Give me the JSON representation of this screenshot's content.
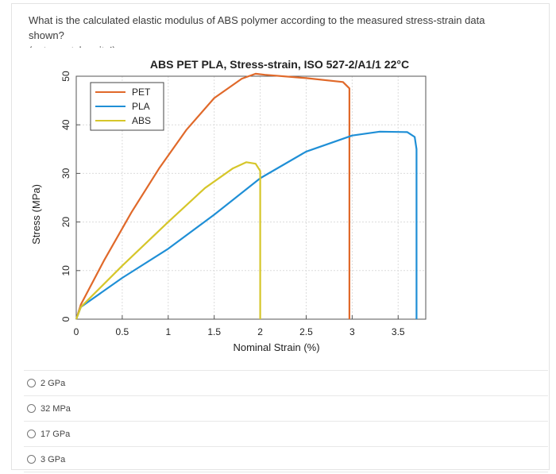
{
  "question": {
    "line1": "What is the calculated elastic modulus of ABS polymer according to the measured stress-strain data shown?",
    "line2": "(note: watch units!)"
  },
  "options": [
    {
      "label": "2 GPa"
    },
    {
      "label": "32 MPa"
    },
    {
      "label": "17 GPa"
    },
    {
      "label": "3 GPa"
    }
  ],
  "chart_data": {
    "type": "line",
    "title": "ABS PET PLA, Stress-strain, ISO 527-2/A1/1 22°C",
    "xlabel": "Nominal Strain (%)",
    "ylabel": "Stress (MPa)",
    "xlim": [
      0,
      3.8
    ],
    "ylim": [
      0,
      50
    ],
    "xticks": [
      0,
      0.5,
      1,
      1.5,
      2,
      2.5,
      3,
      3.5
    ],
    "xtick_labels": [
      "0",
      "0.5",
      "1",
      "1.5",
      "2",
      "2.5",
      "3",
      "3.5"
    ],
    "yticks": [
      0,
      10,
      20,
      30,
      40,
      50
    ],
    "ytick_labels": [
      "0",
      "10",
      "20",
      "30",
      "40",
      "50"
    ],
    "grid": true,
    "legend_position": "top-left",
    "series": [
      {
        "name": "PET",
        "color": "#e0692a",
        "x": [
          0,
          0.05,
          0.3,
          0.6,
          0.9,
          1.2,
          1.5,
          1.8,
          1.95,
          2.05,
          2.5,
          2.9,
          2.97,
          2.97
        ],
        "y": [
          0,
          3,
          12,
          22,
          31,
          39,
          45.5,
          49.5,
          50.5,
          50.3,
          49.6,
          48.8,
          47.5,
          0
        ]
      },
      {
        "name": "PLA",
        "color": "#1f8fd6",
        "x": [
          0,
          0.05,
          0.5,
          1.0,
          1.5,
          2.0,
          2.5,
          3.0,
          3.3,
          3.6,
          3.68,
          3.7,
          3.7
        ],
        "y": [
          0,
          2.5,
          8.5,
          14.5,
          21.5,
          29,
          34.5,
          37.8,
          38.6,
          38.5,
          37.5,
          35,
          0
        ]
      },
      {
        "name": "ABS",
        "color": "#d6c62a",
        "x": [
          0,
          0.05,
          0.5,
          1.0,
          1.4,
          1.7,
          1.85,
          1.95,
          2.0,
          2.0
        ],
        "y": [
          0,
          2.5,
          11,
          20,
          27,
          31,
          32.3,
          32,
          30.5,
          0
        ]
      }
    ]
  }
}
